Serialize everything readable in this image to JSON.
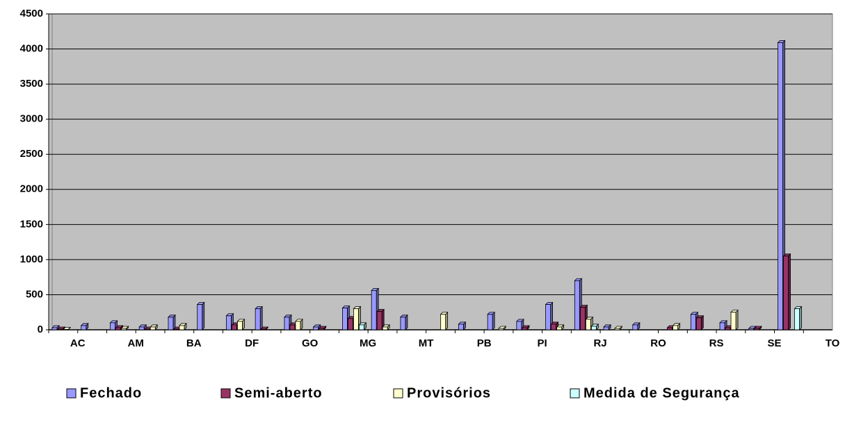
{
  "chart_data": {
    "type": "bar",
    "categories": [
      "AC",
      null,
      "AM",
      null,
      "BA",
      null,
      "DF",
      null,
      "GO",
      null,
      "MG",
      null,
      "MT",
      null,
      "PB",
      null,
      "PI",
      null,
      "RJ",
      null,
      "RO",
      null,
      "RS",
      null,
      "SE",
      null,
      "TO"
    ],
    "series": [
      {
        "name": "Fechado",
        "color": "#9999ff",
        "values": [
          30,
          60,
          100,
          40,
          180,
          360,
          200,
          300,
          180,
          40,
          310,
          560,
          180,
          0,
          80,
          220,
          120,
          360,
          700,
          40,
          70,
          0,
          220,
          100,
          20,
          4090,
          0
        ]
      },
      {
        "name": "Semi-aberto",
        "color": "#993366",
        "values": [
          10,
          0,
          30,
          10,
          10,
          0,
          70,
          10,
          70,
          20,
          160,
          260,
          0,
          0,
          0,
          0,
          30,
          80,
          320,
          0,
          0,
          30,
          170,
          30,
          20,
          1050,
          0
        ]
      },
      {
        "name": "Provisórios",
        "color": "#ffffcc",
        "values": [
          5,
          0,
          20,
          40,
          60,
          0,
          120,
          0,
          120,
          0,
          300,
          40,
          0,
          220,
          0,
          20,
          0,
          40,
          150,
          20,
          0,
          60,
          0,
          250,
          0,
          0,
          0
        ]
      },
      {
        "name": "Medida de Segurança",
        "color": "#ccffff",
        "values": [
          0,
          0,
          0,
          0,
          0,
          0,
          0,
          0,
          0,
          0,
          70,
          0,
          0,
          0,
          0,
          0,
          0,
          0,
          50,
          0,
          0,
          0,
          0,
          0,
          0,
          300,
          0
        ]
      }
    ],
    "ylim": [
      0,
      4500
    ],
    "yticks": [
      0,
      500,
      1000,
      1500,
      2000,
      2500,
      3000,
      3500,
      4000,
      4500
    ],
    "grid": true,
    "legend": "bottom"
  }
}
